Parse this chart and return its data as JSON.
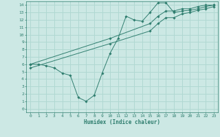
{
  "xlabel": "Humidex (Indice chaleur)",
  "bg_color": "#cce8e4",
  "grid_color": "#b0d8d2",
  "line_color": "#2e7d6e",
  "xlim": [
    -0.5,
    23.5
  ],
  "ylim": [
    -0.5,
    14.5
  ],
  "xticks": [
    0,
    1,
    2,
    3,
    4,
    5,
    6,
    7,
    8,
    9,
    10,
    11,
    12,
    13,
    14,
    15,
    16,
    17,
    18,
    19,
    20,
    21,
    22,
    23
  ],
  "yticks": [
    0,
    1,
    2,
    3,
    4,
    5,
    6,
    7,
    8,
    9,
    10,
    11,
    12,
    13,
    14
  ],
  "line1_x": [
    0,
    1,
    2,
    3,
    4,
    5,
    6,
    7,
    8,
    9,
    10,
    11,
    12,
    13,
    14,
    15,
    16,
    17,
    18,
    19,
    20,
    21,
    22,
    23
  ],
  "line1_y": [
    6.0,
    6.0,
    5.8,
    5.5,
    4.8,
    4.5,
    1.5,
    1.0,
    1.8,
    4.8,
    7.5,
    9.5,
    12.5,
    12.0,
    11.8,
    13.0,
    14.3,
    14.3,
    13.0,
    13.2,
    13.3,
    13.5,
    13.8,
    14.0
  ],
  "line2_x": [
    0,
    10,
    15,
    16,
    17,
    18,
    19,
    20,
    21,
    22,
    23
  ],
  "line2_y": [
    6.0,
    9.5,
    11.5,
    12.5,
    13.2,
    13.2,
    13.5,
    13.5,
    13.8,
    14.0,
    14.0
  ],
  "line3_x": [
    0,
    10,
    15,
    16,
    17,
    18,
    19,
    20,
    21,
    22,
    23
  ],
  "line3_y": [
    5.5,
    8.8,
    10.5,
    11.5,
    12.3,
    12.3,
    12.8,
    13.0,
    13.3,
    13.5,
    13.8
  ]
}
